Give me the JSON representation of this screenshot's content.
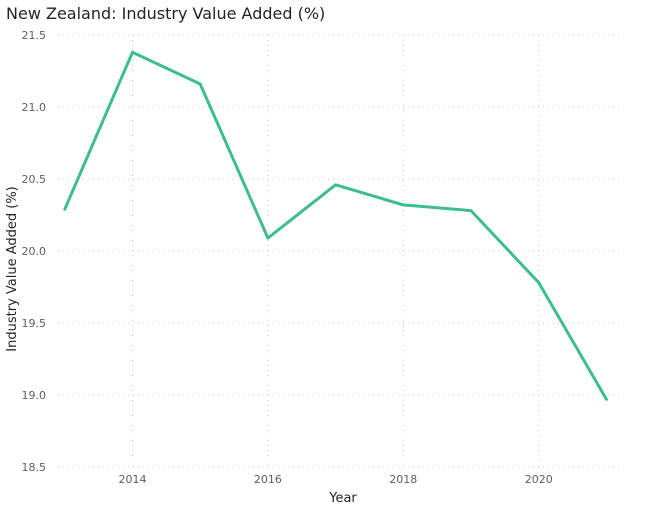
{
  "chart_data": {
    "type": "line",
    "title": "New Zealand: Industry Value Added (%)",
    "xlabel": "Year",
    "ylabel": "Industry Value Added (%)",
    "x": [
      2013,
      2014,
      2015,
      2016,
      2017,
      2018,
      2019,
      2020,
      2021
    ],
    "series": [
      {
        "values": [
          20.29,
          21.38,
          21.16,
          20.09,
          20.46,
          20.32,
          20.28,
          19.78,
          18.97
        ],
        "color": "#3dbf8a"
      }
    ],
    "xlim": [
      2012.9,
      2021.2
    ],
    "ylim": [
      18.5,
      21.5
    ],
    "xticks": [
      "2014",
      "2016",
      "2018",
      "2020"
    ],
    "yticks": [
      "21.5",
      "21.0",
      "20.5",
      "20.0",
      "19.5",
      "19.0",
      "18.5"
    ],
    "grid": true
  }
}
